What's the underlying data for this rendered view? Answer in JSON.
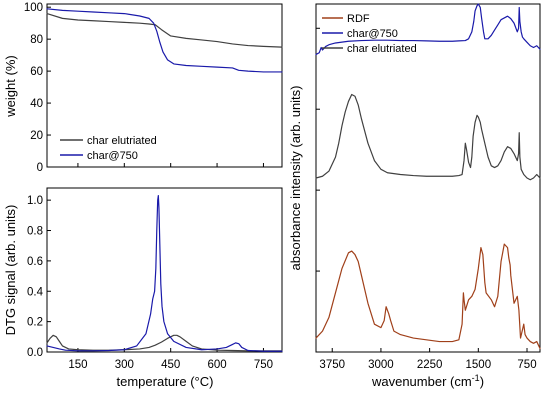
{
  "chart_data": [
    {
      "id": "weight",
      "type": "line",
      "xlabel": "",
      "ylabel": "weight (%)",
      "xlim": [
        50,
        810
      ],
      "ylim": [
        0,
        102
      ],
      "xticks": [
        150,
        300,
        450,
        600,
        750
      ],
      "yticks": [
        0,
        20,
        40,
        60,
        80,
        100
      ],
      "show_x_tick_labels": false,
      "grid": false,
      "legend_position": "bottom-left",
      "series": [
        {
          "name": "char elutriated",
          "color": "#404040",
          "x": [
            50,
            100,
            150,
            200,
            250,
            300,
            350,
            380,
            400,
            420,
            450,
            500,
            550,
            600,
            650,
            700,
            750,
            810
          ],
          "y": [
            96,
            93,
            92,
            91.5,
            91,
            90.5,
            90,
            89.5,
            89,
            86,
            82,
            80.5,
            79.5,
            78.5,
            77,
            76,
            75.5,
            75
          ]
        },
        {
          "name": "char@750",
          "color": "#1a1aaa",
          "x": [
            50,
            100,
            150,
            200,
            250,
            300,
            350,
            380,
            395,
            405,
            415,
            425,
            440,
            460,
            500,
            550,
            600,
            650,
            670,
            700,
            750,
            810
          ],
          "y": [
            99,
            98,
            97.5,
            97,
            96.5,
            96,
            94.5,
            93,
            90,
            85,
            78,
            72,
            67,
            64.5,
            63.5,
            63,
            62.5,
            62,
            60.5,
            60,
            59.5,
            59.5
          ]
        }
      ]
    },
    {
      "id": "dtg",
      "type": "line",
      "xlabel": "temperature (°C)",
      "ylabel": "DTG signal (arb. units)",
      "xlim": [
        50,
        810
      ],
      "ylim": [
        0,
        1.08
      ],
      "xticks": [
        150,
        300,
        450,
        600,
        750
      ],
      "yticks": [
        0.0,
        0.2,
        0.4,
        0.6,
        0.8,
        1.0
      ],
      "ytick_labels": [
        "0.0",
        "0.2",
        "0.4",
        "0.6",
        "0.8",
        "1.0"
      ],
      "grid": false,
      "series": [
        {
          "name": "char elutriated",
          "color": "#404040",
          "x": [
            50,
            60,
            70,
            80,
            90,
            100,
            120,
            150,
            200,
            250,
            300,
            350,
            380,
            400,
            420,
            440,
            460,
            470,
            480,
            500,
            520,
            550,
            600,
            650,
            700,
            750,
            810
          ],
          "y": [
            0.06,
            0.09,
            0.11,
            0.1,
            0.07,
            0.04,
            0.02,
            0.015,
            0.012,
            0.012,
            0.015,
            0.02,
            0.03,
            0.045,
            0.065,
            0.09,
            0.11,
            0.11,
            0.1,
            0.07,
            0.04,
            0.02,
            0.012,
            0.01,
            0.008,
            0.008,
            0.008
          ]
        },
        {
          "name": "char@750",
          "color": "#1a1aaa",
          "x": [
            50,
            60,
            70,
            90,
            110,
            150,
            200,
            250,
            300,
            340,
            370,
            385,
            392,
            398,
            402,
            405,
            408,
            410,
            412,
            415,
            418,
            422,
            428,
            440,
            460,
            500,
            550,
            600,
            630,
            650,
            660,
            670,
            680,
            700,
            750,
            810
          ],
          "y": [
            0.04,
            0.035,
            0.03,
            0.02,
            0.012,
            0.008,
            0.008,
            0.01,
            0.015,
            0.04,
            0.12,
            0.25,
            0.35,
            0.4,
            0.55,
            0.8,
            1.0,
            1.03,
            0.95,
            0.7,
            0.45,
            0.3,
            0.2,
            0.12,
            0.07,
            0.03,
            0.015,
            0.02,
            0.03,
            0.05,
            0.06,
            0.055,
            0.03,
            0.01,
            0.005,
            0.005
          ]
        }
      ]
    },
    {
      "id": "ftir",
      "type": "line",
      "xlabel": "wavenumber (cm-1)",
      "xlabel_main": "wavenumber (cm",
      "xlabel_sup": "-1",
      "xlabel_end": ")",
      "ylabel": "absorbance intensity (arb. units)",
      "xlim": [
        4000,
        550
      ],
      "ylim": [
        0,
        1
      ],
      "xticks": [
        3750,
        3000,
        2250,
        1500,
        750
      ],
      "yticks_unlabeled": 4,
      "x_reversed": true,
      "grid": false,
      "legend_position": "top-left",
      "series": [
        {
          "name": "RDF",
          "color": "#a0401a",
          "x": [
            4000,
            3900,
            3800,
            3700,
            3600,
            3500,
            3450,
            3400,
            3350,
            3300,
            3200,
            3100,
            3000,
            2950,
            2920,
            2900,
            2880,
            2850,
            2800,
            2700,
            2500,
            2300,
            2100,
            1900,
            1800,
            1750,
            1730,
            1720,
            1700,
            1650,
            1600,
            1550,
            1500,
            1460,
            1430,
            1400,
            1380,
            1300,
            1250,
            1200,
            1150,
            1100,
            1050,
            1030,
            1010,
            1000,
            950,
            900,
            875,
            850,
            800,
            780,
            750,
            700,
            650,
            600,
            550
          ],
          "y": [
            0.04,
            0.06,
            0.1,
            0.17,
            0.24,
            0.285,
            0.29,
            0.28,
            0.26,
            0.22,
            0.14,
            0.08,
            0.07,
            0.09,
            0.13,
            0.12,
            0.11,
            0.09,
            0.06,
            0.05,
            0.04,
            0.035,
            0.03,
            0.03,
            0.035,
            0.08,
            0.17,
            0.15,
            0.12,
            0.15,
            0.16,
            0.18,
            0.24,
            0.3,
            0.28,
            0.2,
            0.17,
            0.15,
            0.13,
            0.16,
            0.26,
            0.31,
            0.3,
            0.27,
            0.25,
            0.22,
            0.14,
            0.16,
            0.12,
            0.04,
            0.08,
            0.05,
            0.04,
            0.03,
            0.025,
            0.03,
            0.01
          ]
        },
        {
          "name": "char@750",
          "color": "#1a1aaa",
          "x": [
            4000,
            3950,
            3920,
            3900,
            3850,
            3800,
            3700,
            3500,
            3300,
            3100,
            2900,
            2700,
            2500,
            2300,
            2100,
            1900,
            1800,
            1700,
            1650,
            1600,
            1570,
            1550,
            1520,
            1500,
            1470,
            1450,
            1420,
            1400,
            1350,
            1300,
            1250,
            1200,
            1150,
            1100,
            1050,
            1000,
            950,
            900,
            880,
            870,
            860,
            840,
            820,
            800,
            750,
            700,
            650,
            600,
            550
          ],
          "y": [
            0.855,
            0.86,
            0.875,
            0.868,
            0.878,
            0.883,
            0.888,
            0.893,
            0.895,
            0.896,
            0.896,
            0.895,
            0.895,
            0.894,
            0.893,
            0.893,
            0.894,
            0.895,
            0.9,
            0.92,
            0.95,
            0.98,
            0.995,
            1.0,
            0.99,
            0.96,
            0.92,
            0.9,
            0.9,
            0.91,
            0.925,
            0.94,
            0.955,
            0.96,
            0.965,
            0.958,
            0.945,
            0.92,
            0.93,
            0.99,
            0.95,
            0.92,
            0.905,
            0.9,
            0.89,
            0.88,
            0.875,
            0.88,
            0.87
          ]
        },
        {
          "name": "char elutriated",
          "color": "#404040",
          "x": [
            4000,
            3900,
            3800,
            3700,
            3650,
            3600,
            3550,
            3500,
            3450,
            3400,
            3350,
            3300,
            3200,
            3100,
            3000,
            2900,
            2700,
            2500,
            2300,
            2100,
            1900,
            1800,
            1750,
            1720,
            1700,
            1680,
            1650,
            1620,
            1600,
            1580,
            1550,
            1520,
            1500,
            1470,
            1450,
            1400,
            1350,
            1300,
            1250,
            1200,
            1150,
            1100,
            1050,
            1000,
            950,
            900,
            880,
            870,
            860,
            840,
            800,
            750,
            700,
            650,
            600,
            550
          ],
          "y": [
            0.5,
            0.505,
            0.52,
            0.56,
            0.6,
            0.65,
            0.69,
            0.72,
            0.74,
            0.735,
            0.71,
            0.67,
            0.6,
            0.55,
            0.525,
            0.515,
            0.51,
            0.507,
            0.505,
            0.505,
            0.505,
            0.507,
            0.51,
            0.55,
            0.6,
            0.58,
            0.545,
            0.53,
            0.56,
            0.62,
            0.66,
            0.68,
            0.675,
            0.66,
            0.64,
            0.6,
            0.56,
            0.535,
            0.53,
            0.535,
            0.55,
            0.575,
            0.59,
            0.585,
            0.57,
            0.55,
            0.57,
            0.63,
            0.56,
            0.525,
            0.51,
            0.5,
            0.495,
            0.5,
            0.51,
            0.5
          ]
        }
      ]
    }
  ]
}
